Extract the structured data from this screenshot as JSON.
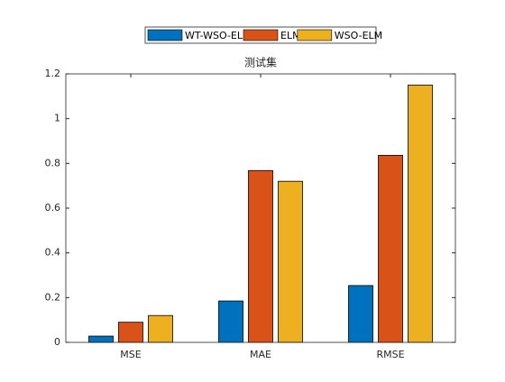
{
  "chart_data": {
    "type": "bar",
    "title": "测试集",
    "categories": [
      "MSE",
      "MAE",
      "RMSE"
    ],
    "series": [
      {
        "name": "WT-WSO-ELM",
        "color": "#0072BD",
        "values": [
          0.028,
          0.185,
          0.254
        ]
      },
      {
        "name": "ELM",
        "color": "#D95319",
        "values": [
          0.09,
          0.768,
          0.836
        ]
      },
      {
        "name": "WSO-ELM",
        "color": "#EDB120",
        "values": [
          0.12,
          0.72,
          1.15
        ]
      }
    ],
    "ylim": [
      0,
      1.2
    ],
    "yticks": [
      0,
      0.2,
      0.4,
      0.6,
      0.8,
      1,
      1.2
    ],
    "grid": false,
    "legend": "top"
  }
}
